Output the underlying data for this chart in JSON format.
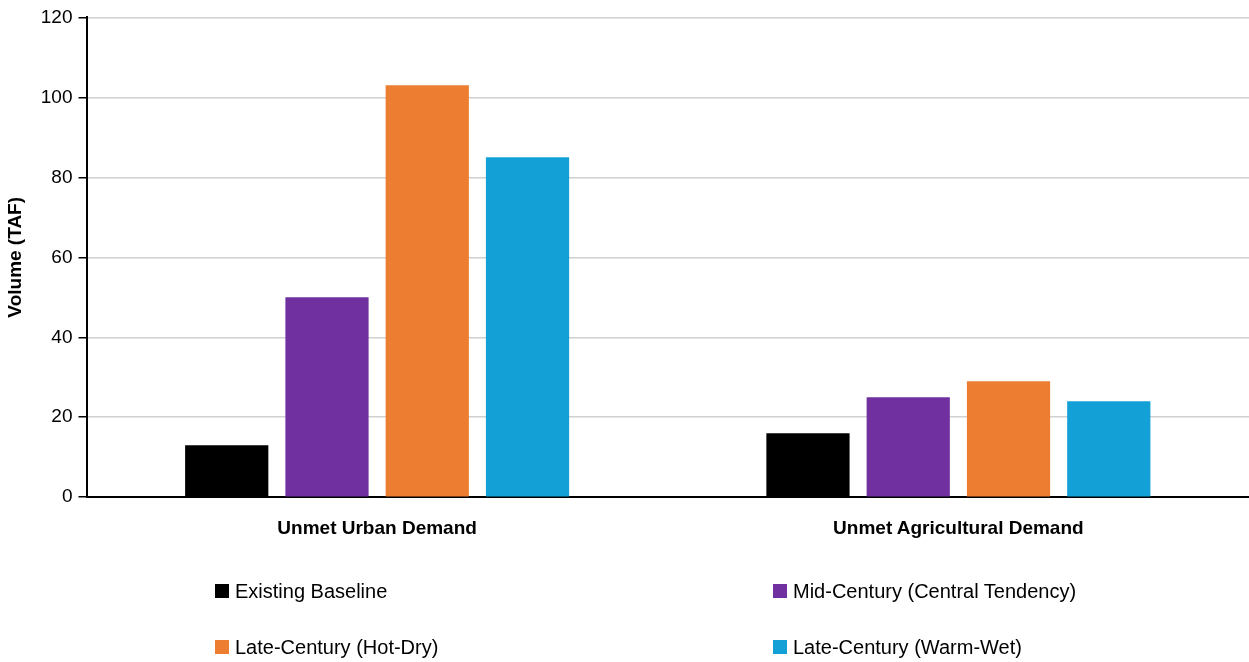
{
  "chart_data": {
    "type": "bar",
    "ylabel": "Volume (TAF)",
    "categories": [
      "Unmet Urban Demand",
      "Unmet Agricultural Demand"
    ],
    "series": [
      {
        "name": "Existing Baseline",
        "color": "#000000",
        "values": [
          13,
          16
        ]
      },
      {
        "name": "Mid-Century (Central Tendency)",
        "color": "#7030a0",
        "values": [
          50,
          25
        ]
      },
      {
        "name": "Late-Century (Hot-Dry)",
        "color": "#ed7d31",
        "values": [
          103,
          29
        ]
      },
      {
        "name": "Late-Century (Warm-Wet)",
        "color": "#12a0d7",
        "values": [
          85,
          24
        ]
      }
    ],
    "ylim": [
      0,
      120
    ],
    "yticks": [
      0,
      20,
      40,
      60,
      80,
      100,
      120
    ],
    "grid": "y",
    "legend": "bottom"
  }
}
